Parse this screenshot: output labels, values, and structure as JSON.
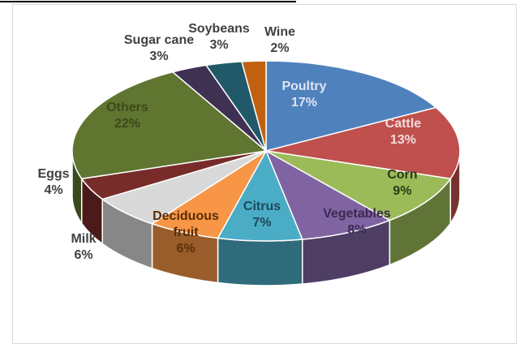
{
  "chart_data": {
    "type": "pie3d",
    "categories": [
      "Poultry",
      "Cattle",
      "Corn",
      "Vegetables",
      "Citrus",
      "Deciduous fruit",
      "Milk",
      "Eggs",
      "Others",
      "Sugar cane",
      "Soybeans",
      "Wine"
    ],
    "values": [
      17,
      13,
      9,
      8,
      7,
      6,
      6,
      4,
      22,
      3,
      3,
      2
    ],
    "value_labels": [
      "17%",
      "13%",
      "9%",
      "8%",
      "7%",
      "6%",
      "6%",
      "4%",
      "22%",
      "3%",
      "3%",
      "2%"
    ],
    "colors": [
      "#4f81bd",
      "#c0504d",
      "#9bbb59",
      "#8064a2",
      "#4bacc6",
      "#f79646",
      "#d9d9d9",
      "#772c2a",
      "#5f7530",
      "#3f3151",
      "#215968",
      "#c0610f"
    ]
  }
}
